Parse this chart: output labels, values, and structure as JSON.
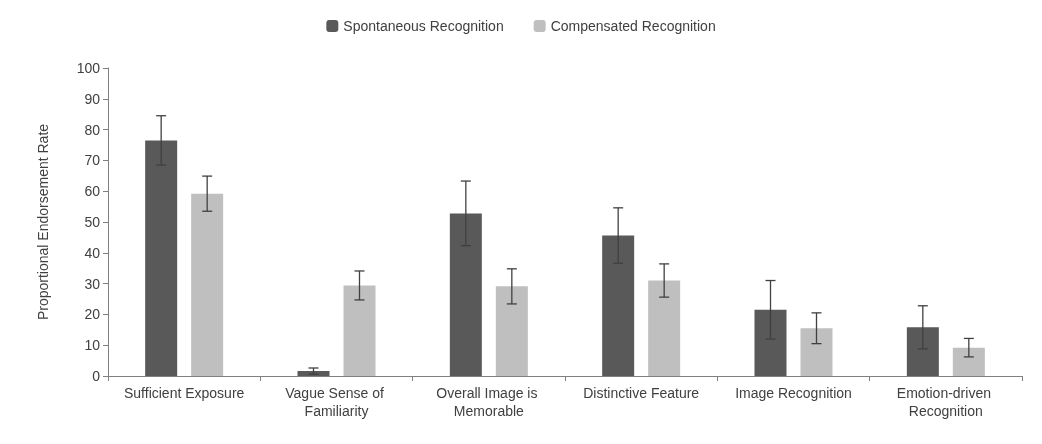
{
  "chart_data": {
    "type": "bar",
    "ylabel": "Proportional Endorsement Rate",
    "categories": [
      "Sufficient Exposure",
      "Vague Sense of Familiarity",
      "Overall Image is Memorable",
      "Distinctive Feature",
      "Image Recognition",
      "Emotion-driven Recognition"
    ],
    "series": [
      {
        "name": "Spontaneous Recognition",
        "color": "#595959",
        "values": [
          76.5,
          1.6,
          52.8,
          45.6,
          21.5,
          15.8
        ],
        "errors": [
          8,
          1,
          10.5,
          9,
          9.5,
          7
        ]
      },
      {
        "name": "Compensated Recognition",
        "color": "#bfbfbf",
        "values": [
          59.2,
          29.4,
          29.1,
          31,
          15.5,
          9.2
        ],
        "errors": [
          5.7,
          4.7,
          5.7,
          5.4,
          5,
          3
        ]
      }
    ],
    "ylim": [
      0,
      100
    ],
    "yticks": [
      0,
      10,
      20,
      30,
      40,
      50,
      60,
      70,
      80,
      90,
      100
    ],
    "grid": false,
    "legend": "top"
  }
}
